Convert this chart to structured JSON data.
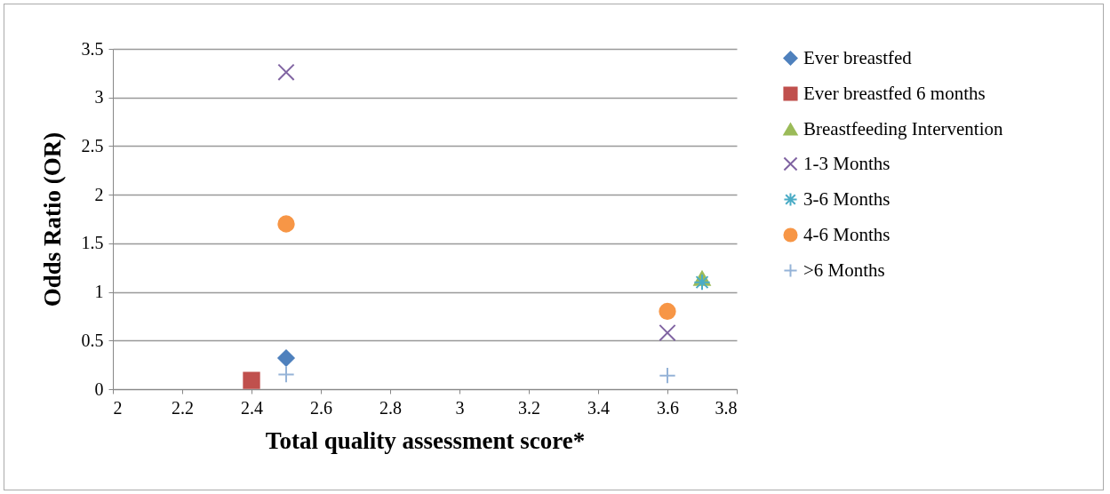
{
  "chart_data": {
    "type": "scatter",
    "xlabel": "Total quality assessment score*",
    "ylabel": "Odds Ratio (OR)",
    "xlim": [
      2,
      3.8
    ],
    "xticks": [
      2,
      2.2,
      2.4,
      2.6,
      2.8,
      3,
      3.2,
      3.4,
      3.6,
      3.8
    ],
    "ylim": [
      0,
      3.5
    ],
    "yticks": [
      0,
      0.5,
      1,
      1.5,
      2,
      2.5,
      3,
      3.5
    ],
    "grid": "y",
    "legend": "right",
    "series": [
      {
        "name": "Ever breastfed",
        "color": "#4f81bd",
        "marker": "diamond",
        "x": [
          2.5
        ],
        "values": [
          0.32
        ]
      },
      {
        "name": "Ever breastfed 6 months",
        "color": "#c0504d",
        "marker": "square",
        "x": [
          2.4
        ],
        "values": [
          0.09
        ]
      },
      {
        "name": "Breastfeeding Intervention",
        "color": "#9bbb59",
        "marker": "triangle",
        "x": [
          3.7
        ],
        "values": [
          1.14
        ]
      },
      {
        "name": "1-3 Months",
        "color": "#8064a2",
        "marker": "x",
        "x": [
          2.5,
          3.6
        ],
        "values": [
          3.26,
          0.58
        ]
      },
      {
        "name": "3-6 Months",
        "color": "#4bacc6",
        "marker": "cross",
        "x": [
          3.7
        ],
        "values": [
          1.1
        ]
      },
      {
        "name": "4-6 Months",
        "color": "#f79646",
        "marker": "circle",
        "x": [
          2.5,
          3.6
        ],
        "values": [
          1.7,
          0.8
        ]
      },
      {
        "name": ">6 Months",
        "color": "#95b3d7",
        "marker": "plus",
        "x": [
          2.5,
          3.6
        ],
        "values": [
          0.15,
          0.14
        ]
      }
    ]
  }
}
